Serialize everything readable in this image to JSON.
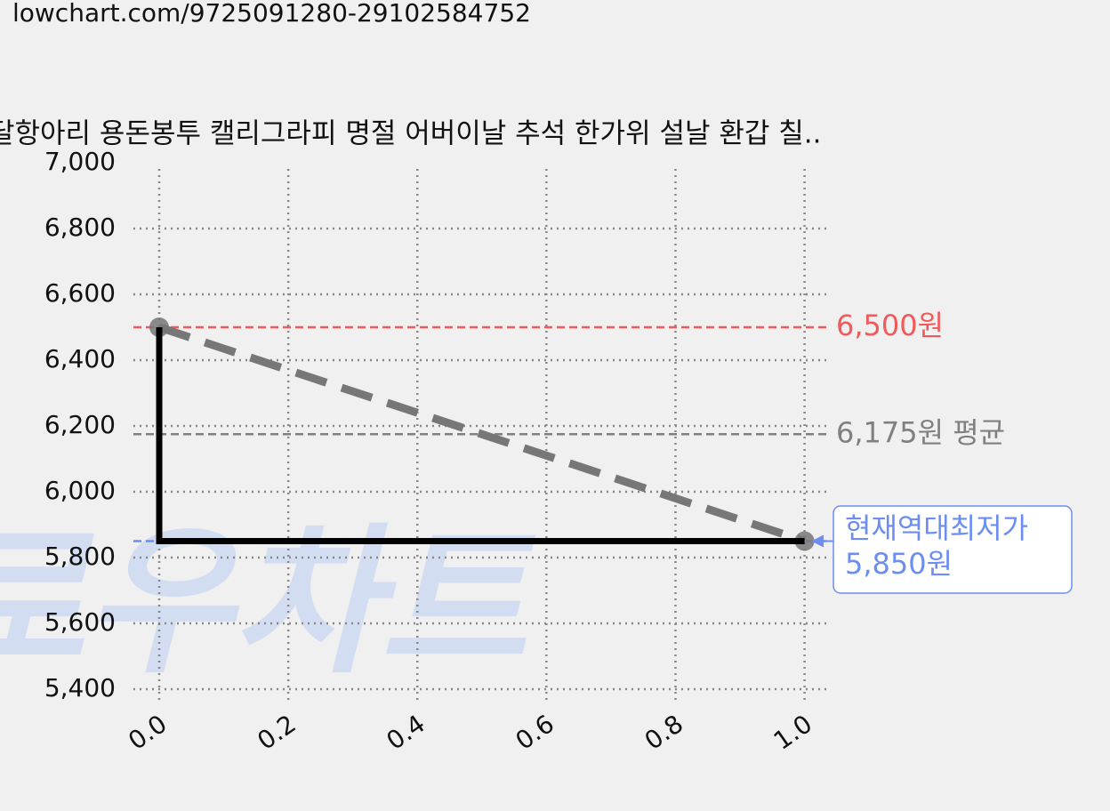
{
  "url": "lowchart.com/9725091280-29102584752",
  "chart_data": {
    "type": "line",
    "title": "달항아리 용돈봉투 캘리그라피 명절 어버이날 추석 한가위 설날 환갑 칠..",
    "watermark": "로우차트",
    "xlim": [
      -0.04,
      1.04
    ],
    "xticks": [
      {
        "value": 0,
        "label": "0.0"
      },
      0.2,
      0.4,
      0.6,
      0.8,
      {
        "value": 1,
        "label": "1.0"
      }
    ],
    "ylim": [
      5400,
      7000
    ],
    "yticks": [
      {
        "value": 5400,
        "label": "5,400"
      },
      {
        "value": 5600,
        "label": "5,600"
      },
      {
        "value": 5800,
        "label": "5,800"
      },
      {
        "value": 6000,
        "label": "6,000"
      },
      {
        "value": 6200,
        "label": "6,200"
      },
      {
        "value": 6400,
        "label": "6,400"
      },
      {
        "value": 6600,
        "label": "6,600"
      },
      {
        "value": 6800,
        "label": "6,800"
      },
      {
        "value": 7000,
        "label": "7,000"
      }
    ],
    "grid": true,
    "series": [
      {
        "x": [
          0,
          1
        ],
        "values": [
          6500,
          5850
        ],
        "color": "#777777",
        "dashed": true,
        "markers": true
      },
      {
        "x": [
          0,
          0,
          1
        ],
        "values": [
          6500,
          5850,
          5850
        ],
        "color": "#000000",
        "dashed": false,
        "markers": false
      }
    ],
    "hlines": [
      {
        "value": 6500,
        "label": "6,500원",
        "color": "#f05a5a"
      },
      {
        "value": 6175,
        "label": "6,175원 평균",
        "color": "#808080"
      }
    ],
    "min_line": {
      "value": 5850,
      "color": "#6b8ef0",
      "label": [
        "현재역대최저가",
        "5,850원"
      ]
    }
  }
}
